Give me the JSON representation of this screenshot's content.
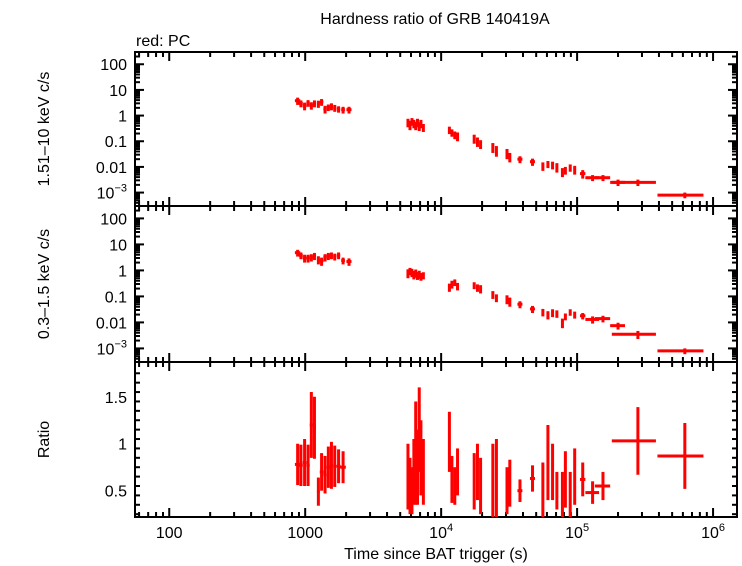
{
  "chart_data": {
    "type": "scatter",
    "title": "Hardness ratio of GRB 140419A",
    "legend": "red: PC",
    "legend_position": "top-left",
    "xlabel": "Time since BAT trigger (s)",
    "xscale": "log",
    "xlim": [
      56,
      1500000
    ],
    "x_ticks": [
      {
        "value": 100,
        "label": "100"
      },
      {
        "value": 1000,
        "label": "1000"
      },
      {
        "value": 10000,
        "label": "10",
        "sup": "4"
      },
      {
        "value": 100000,
        "label": "10",
        "sup": "5"
      },
      {
        "value": 1000000,
        "label": "10",
        "sup": "6"
      }
    ],
    "series_color": "#ff0000",
    "panels": [
      {
        "id": "hard",
        "ylabel": "1.51–10 keV c/s",
        "yscale": "log",
        "ylim": [
          0.0003,
          300
        ],
        "y_ticks": [
          {
            "value": 100,
            "label": "100"
          },
          {
            "value": 10,
            "label": "10"
          },
          {
            "value": 1,
            "label": "1"
          },
          {
            "value": 0.1,
            "label": "0.1"
          },
          {
            "value": 0.01,
            "label": "0.01"
          },
          {
            "value": 0.001,
            "label": "10",
            "sup": "−3"
          }
        ],
        "points": [
          [
            880,
            3.8,
            40,
            1.2
          ],
          [
            930,
            3.0,
            30,
            0.9
          ],
          [
            990,
            2.4,
            30,
            0.8
          ],
          [
            1050,
            3.1,
            30,
            0.9
          ],
          [
            1110,
            2.5,
            30,
            0.8
          ],
          [
            1170,
            3.0,
            30,
            0.9
          ],
          [
            1250,
            2.9,
            30,
            0.9
          ],
          [
            1320,
            3.4,
            40,
            1.0
          ],
          [
            1400,
            1.8,
            40,
            0.6
          ],
          [
            1480,
            2.1,
            40,
            0.6
          ],
          [
            1560,
            2.3,
            40,
            0.7
          ],
          [
            1650,
            2.0,
            40,
            0.6
          ],
          [
            1760,
            1.8,
            50,
            0.5
          ],
          [
            1900,
            1.7,
            60,
            0.5
          ],
          [
            2100,
            1.7,
            90,
            0.5
          ],
          [
            5700,
            0.55,
            60,
            0.2
          ],
          [
            5900,
            0.45,
            60,
            0.18
          ],
          [
            6100,
            0.6,
            60,
            0.2
          ],
          [
            6300,
            0.5,
            60,
            0.18
          ],
          [
            6500,
            0.42,
            60,
            0.15
          ],
          [
            6700,
            0.55,
            60,
            0.2
          ],
          [
            6900,
            0.4,
            60,
            0.15
          ],
          [
            7100,
            0.5,
            60,
            0.18
          ],
          [
            7400,
            0.35,
            80,
            0.12
          ],
          [
            11500,
            0.28,
            150,
            0.09
          ],
          [
            12000,
            0.22,
            150,
            0.07
          ],
          [
            12600,
            0.18,
            150,
            0.06
          ],
          [
            13200,
            0.16,
            150,
            0.06
          ],
          [
            17500,
            0.13,
            200,
            0.05
          ],
          [
            18500,
            0.1,
            200,
            0.04
          ],
          [
            19500,
            0.08,
            200,
            0.03
          ],
          [
            24000,
            0.06,
            300,
            0.025
          ],
          [
            25500,
            0.045,
            300,
            0.02
          ],
          [
            30500,
            0.035,
            400,
            0.015
          ],
          [
            32000,
            0.025,
            400,
            0.01
          ],
          [
            38000,
            0.02,
            1600,
            0.006
          ],
          [
            47000,
            0.016,
            2000,
            0.005
          ],
          [
            56000,
            0.011,
            500,
            0.004
          ],
          [
            61000,
            0.013,
            1000,
            0.004
          ],
          [
            66000,
            0.012,
            1000,
            0.004
          ],
          [
            71000,
            0.01,
            1000,
            0.004
          ],
          [
            78000,
            0.0065,
            1500,
            0.0025
          ],
          [
            82000,
            0.0075,
            1500,
            0.0025
          ],
          [
            89000,
            0.0095,
            1500,
            0.003
          ],
          [
            96000,
            0.008,
            2000,
            0.003
          ],
          [
            110000,
            0.0055,
            5000,
            0.002
          ],
          [
            130000,
            0.0038,
            15000,
            0.001
          ],
          [
            155000,
            0.0038,
            20000,
            0.001
          ],
          [
            200000,
            0.0025,
            25000,
            0.0007
          ],
          [
            280000,
            0.0025,
            100000,
            0.0007
          ],
          [
            620000,
            0.0008,
            230000,
            0.0002
          ]
        ]
      },
      {
        "id": "soft",
        "ylabel": "0.3–1.5 keV c/s",
        "yscale": "log",
        "ylim": [
          0.0003,
          300
        ],
        "y_ticks": [
          {
            "value": 100,
            "label": "100"
          },
          {
            "value": 10,
            "label": "10"
          },
          {
            "value": 1,
            "label": "1"
          },
          {
            "value": 0.1,
            "label": "0.1"
          },
          {
            "value": 0.01,
            "label": "0.01"
          },
          {
            "value": 0.001,
            "label": "10",
            "sup": "−3"
          }
        ],
        "points": [
          [
            880,
            4.8,
            40,
            1.4
          ],
          [
            930,
            3.8,
            30,
            1.1
          ],
          [
            990,
            3.0,
            30,
            1.0
          ],
          [
            1050,
            3.0,
            30,
            1.0
          ],
          [
            1110,
            3.2,
            30,
            1.0
          ],
          [
            1170,
            3.6,
            30,
            1.1
          ],
          [
            1250,
            2.6,
            30,
            0.9
          ],
          [
            1320,
            2.3,
            40,
            0.8
          ],
          [
            1400,
            3.2,
            40,
            1.0
          ],
          [
            1480,
            3.6,
            40,
            1.1
          ],
          [
            1560,
            3.8,
            40,
            1.1
          ],
          [
            1650,
            3.4,
            40,
            1.0
          ],
          [
            1760,
            3.8,
            50,
            1.1
          ],
          [
            1900,
            2.4,
            60,
            0.7
          ],
          [
            2100,
            2.2,
            90,
            0.7
          ],
          [
            5700,
            0.8,
            60,
            0.3
          ],
          [
            5900,
            0.95,
            60,
            0.3
          ],
          [
            6100,
            0.85,
            60,
            0.3
          ],
          [
            6300,
            0.7,
            60,
            0.25
          ],
          [
            6500,
            0.8,
            60,
            0.28
          ],
          [
            6700,
            0.65,
            60,
            0.22
          ],
          [
            6900,
            0.72,
            60,
            0.25
          ],
          [
            7100,
            0.6,
            60,
            0.2
          ],
          [
            7400,
            0.65,
            80,
            0.2
          ],
          [
            11500,
            0.23,
            150,
            0.08
          ],
          [
            12000,
            0.3,
            150,
            0.1
          ],
          [
            12600,
            0.35,
            150,
            0.1
          ],
          [
            13200,
            0.25,
            150,
            0.08
          ],
          [
            17500,
            0.27,
            200,
            0.08
          ],
          [
            18500,
            0.22,
            200,
            0.07
          ],
          [
            19500,
            0.2,
            200,
            0.07
          ],
          [
            24000,
            0.12,
            300,
            0.04
          ],
          [
            25500,
            0.09,
            300,
            0.03
          ],
          [
            30500,
            0.08,
            400,
            0.03
          ],
          [
            32000,
            0.065,
            400,
            0.025
          ],
          [
            38000,
            0.05,
            1600,
            0.015
          ],
          [
            47000,
            0.033,
            2000,
            0.01
          ],
          [
            56000,
            0.025,
            500,
            0.008
          ],
          [
            61000,
            0.02,
            1000,
            0.007
          ],
          [
            66000,
            0.024,
            1000,
            0.008
          ],
          [
            71000,
            0.022,
            1000,
            0.007
          ],
          [
            78000,
            0.01,
            1500,
            0.004
          ],
          [
            82000,
            0.017,
            1500,
            0.005
          ],
          [
            89000,
            0.025,
            1500,
            0.007
          ],
          [
            96000,
            0.02,
            2000,
            0.006
          ],
          [
            110000,
            0.018,
            5000,
            0.005
          ],
          [
            130000,
            0.013,
            15000,
            0.004
          ],
          [
            155000,
            0.014,
            20000,
            0.004
          ],
          [
            200000,
            0.0075,
            25000,
            0.0022
          ],
          [
            280000,
            0.0035,
            100000,
            0.0012
          ],
          [
            620000,
            0.0008,
            230000,
            0.0002
          ]
        ]
      },
      {
        "id": "ratio",
        "ylabel": "Ratio",
        "yscale": "linear",
        "ylim": [
          0.22,
          1.87
        ],
        "y_ticks": [
          {
            "value": 1.5,
            "label": "1.5"
          },
          {
            "value": 1,
            "label": "1"
          },
          {
            "value": 0.5,
            "label": "0.5"
          }
        ],
        "points": [
          [
            880,
            0.78,
            40,
            0.22
          ],
          [
            930,
            0.77,
            30,
            0.22
          ],
          [
            990,
            0.8,
            30,
            0.25
          ],
          [
            1050,
            0.77,
            30,
            0.22
          ],
          [
            1110,
            1.2,
            30,
            0.35
          ],
          [
            1170,
            1.17,
            30,
            0.33
          ],
          [
            1250,
            0.49,
            30,
            0.15
          ],
          [
            1320,
            0.7,
            40,
            0.2
          ],
          [
            1400,
            0.67,
            40,
            0.2
          ],
          [
            1480,
            0.75,
            40,
            0.22
          ],
          [
            1560,
            0.77,
            40,
            0.25
          ],
          [
            1650,
            0.76,
            40,
            0.22
          ],
          [
            1760,
            0.76,
            60,
            0.18
          ],
          [
            1900,
            0.75,
            90,
            0.17
          ],
          [
            5700,
            0.65,
            60,
            0.35
          ],
          [
            5900,
            0.55,
            60,
            0.3
          ],
          [
            6100,
            0.5,
            60,
            0.25
          ],
          [
            6300,
            0.7,
            60,
            0.35
          ],
          [
            6500,
            0.9,
            60,
            0.55
          ],
          [
            6700,
            0.75,
            60,
            0.4
          ],
          [
            6900,
            1.15,
            60,
            0.45
          ],
          [
            7100,
            0.85,
            60,
            0.4
          ],
          [
            7400,
            0.7,
            80,
            0.35
          ],
          [
            11500,
            1.02,
            150,
            0.32
          ],
          [
            12000,
            0.62,
            150,
            0.25
          ],
          [
            12600,
            0.55,
            150,
            0.2
          ],
          [
            13200,
            0.7,
            150,
            0.25
          ],
          [
            17500,
            0.6,
            200,
            0.3
          ],
          [
            18500,
            0.7,
            200,
            0.3
          ],
          [
            19500,
            0.55,
            200,
            0.3
          ],
          [
            24000,
            0.6,
            300,
            0.4
          ],
          [
            25500,
            0.55,
            300,
            0.5
          ],
          [
            30500,
            0.5,
            400,
            0.25
          ],
          [
            32000,
            0.58,
            400,
            0.25
          ],
          [
            38000,
            0.5,
            1600,
            0.12
          ],
          [
            47000,
            0.63,
            2000,
            0.14
          ],
          [
            56000,
            0.5,
            500,
            0.3
          ],
          [
            61000,
            0.8,
            1000,
            0.4
          ],
          [
            66000,
            0.7,
            1000,
            0.3
          ],
          [
            71000,
            0.5,
            1000,
            0.2
          ],
          [
            78000,
            0.45,
            1500,
            0.25
          ],
          [
            82000,
            0.62,
            1500,
            0.3
          ],
          [
            89000,
            0.45,
            1500,
            0.25
          ],
          [
            96000,
            0.65,
            2000,
            0.3
          ],
          [
            110000,
            0.62,
            5000,
            0.18
          ],
          [
            130000,
            0.48,
            15000,
            0.12
          ],
          [
            155000,
            0.55,
            20000,
            0.15
          ],
          [
            280000,
            1.03,
            100000,
            0.36
          ],
          [
            620000,
            0.87,
            230000,
            0.35
          ]
        ]
      }
    ]
  }
}
